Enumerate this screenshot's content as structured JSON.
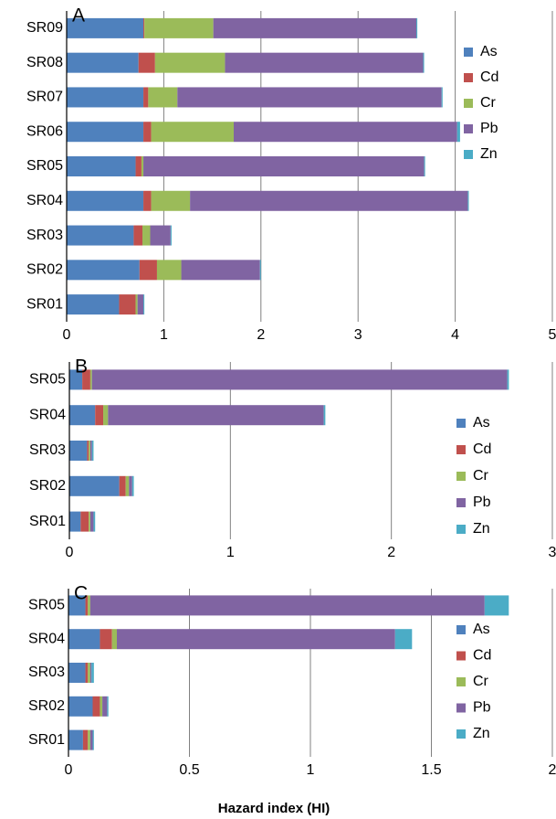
{
  "chart_data": [
    {
      "type": "bar",
      "orientation": "horizontal",
      "stacked": true,
      "title": "A",
      "categories": [
        "SR01",
        "SR02",
        "SR03",
        "SR04",
        "SR05",
        "SR06",
        "SR07",
        "SR08",
        "SR09"
      ],
      "series": [
        {
          "name": "As",
          "color": "#4f81bd",
          "values": [
            0.54,
            0.75,
            0.69,
            0.79,
            0.71,
            0.79,
            0.79,
            0.74,
            0.79
          ]
        },
        {
          "name": "Cd",
          "color": "#c0504d",
          "values": [
            0.17,
            0.18,
            0.09,
            0.08,
            0.06,
            0.08,
            0.05,
            0.17,
            0.01
          ]
        },
        {
          "name": "Cr",
          "color": "#9bbb59",
          "values": [
            0.02,
            0.25,
            0.08,
            0.4,
            0.02,
            0.85,
            0.3,
            0.72,
            0.71
          ]
        },
        {
          "name": "Pb",
          "color": "#8064a2",
          "values": [
            0.06,
            0.81,
            0.21,
            2.86,
            2.89,
            2.3,
            2.72,
            2.04,
            2.09
          ]
        },
        {
          "name": "Zn",
          "color": "#4bacc6",
          "values": [
            0.01,
            0.01,
            0.01,
            0.01,
            0.01,
            0.03,
            0.01,
            0.01,
            0.01
          ]
        }
      ],
      "xlim": [
        0,
        5
      ],
      "xticks": [
        0,
        1,
        2,
        3,
        4,
        5
      ],
      "grid": true,
      "legend": "upper right"
    },
    {
      "type": "bar",
      "orientation": "horizontal",
      "stacked": true,
      "title": "B",
      "categories": [
        "SR01",
        "SR02",
        "SR03",
        "SR04",
        "SR05"
      ],
      "series": [
        {
          "name": "As",
          "color": "#4f81bd",
          "values": [
            0.07,
            0.31,
            0.11,
            0.16,
            0.08
          ]
        },
        {
          "name": "Cd",
          "color": "#c0504d",
          "values": [
            0.05,
            0.04,
            0.01,
            0.05,
            0.05
          ]
        },
        {
          "name": "Cr",
          "color": "#9bbb59",
          "values": [
            0.01,
            0.02,
            0.01,
            0.03,
            0.01
          ]
        },
        {
          "name": "Pb",
          "color": "#8064a2",
          "values": [
            0.02,
            0.02,
            0.01,
            1.34,
            2.58
          ]
        },
        {
          "name": "Zn",
          "color": "#4bacc6",
          "values": [
            0.01,
            0.01,
            0.01,
            0.01,
            0.01
          ]
        }
      ],
      "xlim": [
        0,
        3
      ],
      "xticks": [
        0,
        1,
        2,
        3
      ],
      "grid": true,
      "legend": "lower right"
    },
    {
      "type": "bar",
      "orientation": "horizontal",
      "stacked": true,
      "title": "C",
      "categories": [
        "SR01",
        "SR02",
        "SR03",
        "SR04",
        "SR05"
      ],
      "series": [
        {
          "name": "As",
          "color": "#4f81bd",
          "values": [
            0.06,
            0.1,
            0.07,
            0.13,
            0.07
          ]
        },
        {
          "name": "Cd",
          "color": "#c0504d",
          "values": [
            0.02,
            0.03,
            0.01,
            0.05,
            0.01
          ]
        },
        {
          "name": "Cr",
          "color": "#9bbb59",
          "values": [
            0.01,
            0.01,
            0.01,
            0.02,
            0.01
          ]
        },
        {
          "name": "Pb",
          "color": "#8064a2",
          "values": [
            0.01,
            0.02,
            0.005,
            1.15,
            1.63
          ]
        },
        {
          "name": "Zn",
          "color": "#4bacc6",
          "values": [
            0.005,
            0.005,
            0.01,
            0.07,
            0.1
          ]
        }
      ],
      "xlim": [
        0,
        2
      ],
      "xticks": [
        0,
        0.5,
        1,
        1.5,
        2
      ],
      "grid": true,
      "legend": "lower right",
      "xlabel": "Hazard index (HI)"
    }
  ]
}
